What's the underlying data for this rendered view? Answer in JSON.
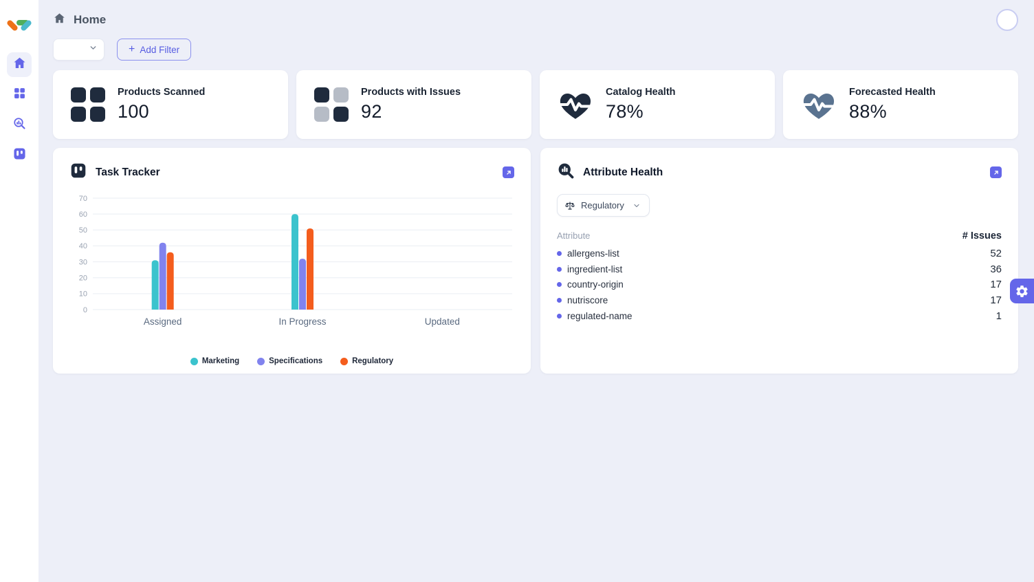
{
  "colors": {
    "accent": "#6466e9",
    "navy": "#1f2b3d",
    "muted_square": "#b6bcc6",
    "slate_heart": "#5a7390",
    "teal": "#3bc3cd",
    "purple": "#8183ee",
    "orange": "#f45d1d"
  },
  "header": {
    "breadcrumb": "Home"
  },
  "filters": {
    "select_value": "",
    "plus_icon": "+",
    "add_filter_label": "Add Filter"
  },
  "stats": [
    {
      "label": "Products Scanned",
      "value": "100"
    },
    {
      "label": "Products with Issues",
      "value": "92"
    },
    {
      "label": "Catalog Health",
      "value": "78%"
    },
    {
      "label": "Forecasted Health",
      "value": "88%"
    }
  ],
  "task_tracker": {
    "title": "Task Tracker"
  },
  "chart_data": {
    "type": "bar",
    "title": "Task Tracker",
    "categories": [
      "Assigned",
      "In Progress",
      "Updated"
    ],
    "series": [
      {
        "name": "Marketing",
        "color": "#3bc3cd",
        "values": [
          31,
          60,
          0
        ]
      },
      {
        "name": "Specifications",
        "color": "#8183ee",
        "values": [
          42,
          32,
          0
        ]
      },
      {
        "name": "Regulatory",
        "color": "#f45d1d",
        "values": [
          36,
          51,
          0
        ]
      }
    ],
    "xlabel": "",
    "ylabel": "",
    "ylim": [
      0,
      70
    ],
    "yticks": [
      0,
      10,
      20,
      30,
      40,
      50,
      60,
      70
    ],
    "grid": true,
    "legend_position": "bottom"
  },
  "attribute_health": {
    "title": "Attribute Health",
    "filter_value": "Regulatory",
    "columns": [
      "Attribute",
      "# Issues"
    ],
    "rows": [
      {
        "name": "allergens-list",
        "issues": "52"
      },
      {
        "name": "ingredient-list",
        "issues": "36"
      },
      {
        "name": "country-origin",
        "issues": "17"
      },
      {
        "name": "nutriscore",
        "issues": "17"
      },
      {
        "name": "regulated-name",
        "issues": "1"
      }
    ]
  }
}
